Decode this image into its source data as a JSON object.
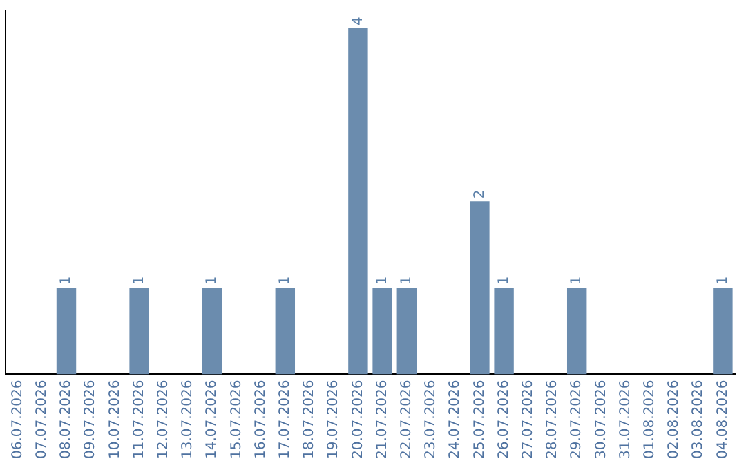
{
  "chart_data": {
    "type": "bar",
    "categories": [
      "06.07.2026",
      "07.07.2026",
      "08.07.2026",
      "09.07.2026",
      "10.07.2026",
      "11.07.2026",
      "12.07.2026",
      "13.07.2026",
      "14.07.2026",
      "15.07.2026",
      "16.07.2026",
      "17.07.2026",
      "18.07.2026",
      "19.07.2026",
      "20.07.2026",
      "21.07.2026",
      "22.07.2026",
      "23.07.2026",
      "24.07.2026",
      "25.07.2026",
      "26.07.2026",
      "27.07.2026",
      "28.07.2026",
      "29.07.2026",
      "30.07.2026",
      "31.07.2026",
      "01.08.2026",
      "02.08.2026",
      "03.08.2026",
      "04.08.2026"
    ],
    "values": [
      0,
      0,
      1,
      0,
      0,
      1,
      0,
      0,
      1,
      0,
      0,
      1,
      0,
      0,
      4,
      1,
      1,
      0,
      0,
      2,
      1,
      0,
      0,
      1,
      0,
      0,
      0,
      0,
      0,
      1
    ],
    "value_labels": [
      null,
      null,
      "1",
      null,
      null,
      "1",
      null,
      null,
      "1",
      null,
      null,
      "1",
      null,
      null,
      "4",
      "1",
      "1",
      null,
      null,
      "2",
      "1",
      null,
      null,
      "1",
      null,
      null,
      null,
      null,
      null,
      "1"
    ],
    "color": "#6b8cae",
    "ylim": [
      0,
      4.2
    ],
    "tick_labels": "x",
    "grid": false,
    "legend": false
  }
}
